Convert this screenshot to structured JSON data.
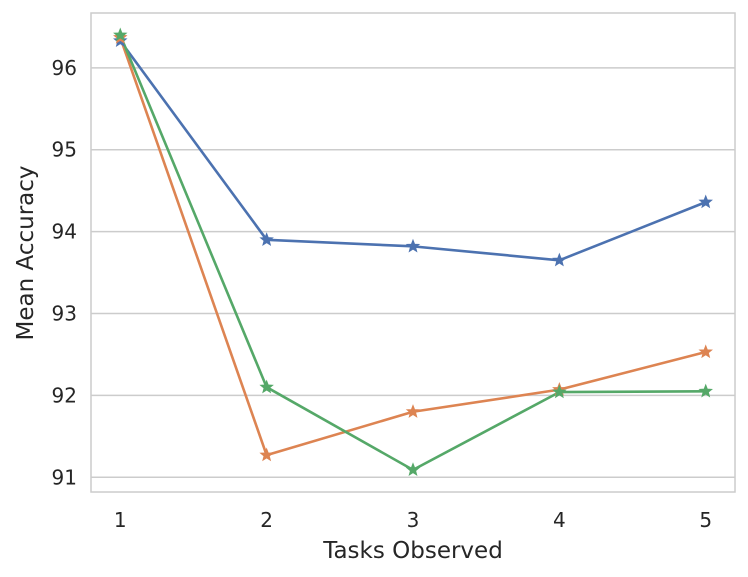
{
  "chart_data": {
    "type": "line",
    "title": "",
    "xlabel": "Tasks Observed",
    "ylabel": "Mean Accuracy",
    "x": [
      1,
      2,
      3,
      4,
      5
    ],
    "xlim": [
      0.8,
      5.2
    ],
    "ylim": [
      90.82,
      96.67
    ],
    "xticks": [
      "1",
      "2",
      "3",
      "4",
      "5"
    ],
    "yticks": [
      91,
      92,
      93,
      94,
      95,
      96
    ],
    "ytick_labels": [
      "91",
      "92",
      "93",
      "94",
      "95",
      "96"
    ],
    "grid": "horizontal",
    "marker": "star",
    "series": [
      {
        "color": "#4c72b0",
        "values": [
          96.33,
          93.9,
          93.82,
          93.65,
          94.36
        ]
      },
      {
        "color": "#dd8452",
        "values": [
          96.37,
          91.27,
          91.8,
          92.07,
          92.53
        ]
      },
      {
        "color": "#55a868",
        "values": [
          96.4,
          92.1,
          91.09,
          92.04,
          92.05
        ]
      }
    ]
  }
}
